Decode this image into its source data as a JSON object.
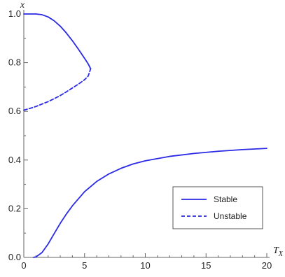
{
  "chart_data": {
    "type": "line",
    "xlabel": "T",
    "xlabel_sub": "X",
    "ylabel": "x",
    "xlim": [
      0,
      20
    ],
    "ylim": [
      0,
      1.0
    ],
    "x_ticks": [
      0,
      5,
      10,
      15,
      20
    ],
    "y_ticks": [
      0.0,
      0.2,
      0.4,
      0.6,
      0.8,
      1.0
    ],
    "x_tick_labels": [
      "0",
      "5",
      "10",
      "15",
      "20"
    ],
    "y_tick_labels": [
      "0.0",
      "0.2",
      "0.4",
      "0.6",
      "0.8",
      "1.0"
    ],
    "grid": false,
    "legend_position": "lower-right",
    "legend": [
      {
        "label": "Stable",
        "style": "solid"
      },
      {
        "label": "Unstable",
        "style": "dashed"
      }
    ],
    "series": [
      {
        "style": "solid",
        "color": "#2a2ae6",
        "x": [
          0,
          0.5,
          1.0,
          1.5,
          2.0,
          2.5,
          3.0,
          3.5,
          4.0,
          4.5,
          5.0,
          5.3,
          5.5
        ],
        "y": [
          1.0,
          1.0,
          1.0,
          0.997,
          0.988,
          0.972,
          0.95,
          0.922,
          0.89,
          0.855,
          0.818,
          0.795,
          0.775
        ]
      },
      {
        "style": "dashed",
        "color": "#2a2ae6",
        "x": [
          0,
          0.5,
          1.0,
          1.5,
          2.0,
          2.5,
          3.0,
          3.5,
          4.0,
          4.5,
          5.0,
          5.3,
          5.5
        ],
        "y": [
          0.605,
          0.612,
          0.62,
          0.63,
          0.64,
          0.652,
          0.665,
          0.68,
          0.696,
          0.712,
          0.73,
          0.745,
          0.775
        ]
      },
      {
        "style": "solid",
        "color": "#2a2ae6",
        "x": [
          0.8,
          1.0,
          1.5,
          2.0,
          2.5,
          3.0,
          3.5,
          4.0,
          5.0,
          6.0,
          7.0,
          8.0,
          9.0,
          10.0,
          12.0,
          14.0,
          16.0,
          18.0,
          20.0
        ],
        "y": [
          0.0,
          0.002,
          0.02,
          0.055,
          0.098,
          0.14,
          0.178,
          0.212,
          0.27,
          0.312,
          0.343,
          0.366,
          0.384,
          0.397,
          0.415,
          0.427,
          0.436,
          0.443,
          0.448
        ]
      }
    ]
  }
}
